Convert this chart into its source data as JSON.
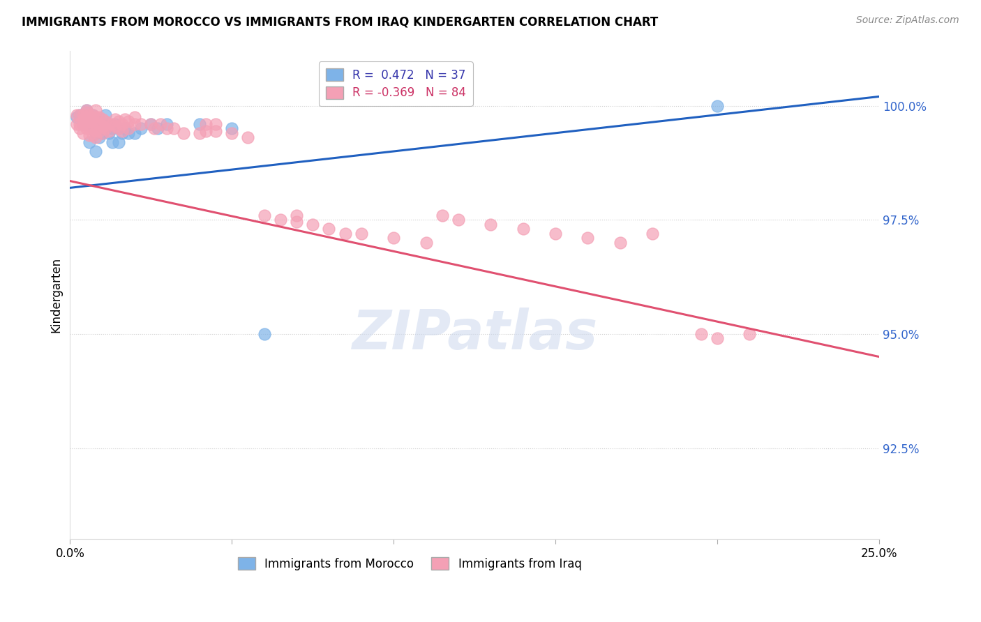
{
  "title": "IMMIGRANTS FROM MOROCCO VS IMMIGRANTS FROM IRAQ KINDERGARTEN CORRELATION CHART",
  "source": "Source: ZipAtlas.com",
  "ylabel": "Kindergarten",
  "ytick_values": [
    0.925,
    0.95,
    0.975,
    1.0
  ],
  "xlim": [
    0.0,
    0.25
  ],
  "ylim": [
    0.905,
    1.012
  ],
  "morocco_color": "#7eb3e8",
  "iraq_color": "#f4a0b5",
  "morocco_line_color": "#2060c0",
  "iraq_line_color": "#e05070",
  "watermark_text": "ZIPatlas",
  "morocco_points": [
    [
      0.002,
      0.9975
    ],
    [
      0.003,
      0.998
    ],
    [
      0.004,
      0.996
    ],
    [
      0.005,
      0.999
    ],
    [
      0.005,
      0.996
    ],
    [
      0.006,
      0.997
    ],
    [
      0.006,
      0.992
    ],
    [
      0.007,
      0.998
    ],
    [
      0.007,
      0.995
    ],
    [
      0.008,
      0.997
    ],
    [
      0.008,
      0.994
    ],
    [
      0.008,
      0.99
    ],
    [
      0.009,
      0.996
    ],
    [
      0.009,
      0.993
    ],
    [
      0.01,
      0.996
    ],
    [
      0.01,
      0.994
    ],
    [
      0.011,
      0.998
    ],
    [
      0.011,
      0.995
    ],
    [
      0.012,
      0.996
    ],
    [
      0.012,
      0.994
    ],
    [
      0.013,
      0.995
    ],
    [
      0.013,
      0.992
    ],
    [
      0.014,
      0.996
    ],
    [
      0.015,
      0.995
    ],
    [
      0.015,
      0.992
    ],
    [
      0.016,
      0.994
    ],
    [
      0.017,
      0.995
    ],
    [
      0.018,
      0.994
    ],
    [
      0.02,
      0.994
    ],
    [
      0.022,
      0.995
    ],
    [
      0.025,
      0.996
    ],
    [
      0.027,
      0.995
    ],
    [
      0.03,
      0.996
    ],
    [
      0.04,
      0.996
    ],
    [
      0.05,
      0.995
    ],
    [
      0.2,
      1.0
    ],
    [
      0.06,
      0.95
    ]
  ],
  "iraq_points": [
    [
      0.002,
      0.998
    ],
    [
      0.002,
      0.996
    ],
    [
      0.003,
      0.998
    ],
    [
      0.003,
      0.996
    ],
    [
      0.003,
      0.995
    ],
    [
      0.004,
      0.998
    ],
    [
      0.004,
      0.997
    ],
    [
      0.004,
      0.996
    ],
    [
      0.004,
      0.994
    ],
    [
      0.005,
      0.9985
    ],
    [
      0.005,
      0.9975
    ],
    [
      0.005,
      0.9965
    ],
    [
      0.005,
      0.995
    ],
    [
      0.006,
      0.998
    ],
    [
      0.006,
      0.9965
    ],
    [
      0.006,
      0.995
    ],
    [
      0.006,
      0.9935
    ],
    [
      0.007,
      0.998
    ],
    [
      0.007,
      0.9965
    ],
    [
      0.007,
      0.995
    ],
    [
      0.007,
      0.9935
    ],
    [
      0.008,
      0.9975
    ],
    [
      0.008,
      0.996
    ],
    [
      0.008,
      0.9945
    ],
    [
      0.008,
      0.993
    ],
    [
      0.009,
      0.9975
    ],
    [
      0.009,
      0.996
    ],
    [
      0.009,
      0.9945
    ],
    [
      0.01,
      0.997
    ],
    [
      0.01,
      0.9955
    ],
    [
      0.01,
      0.994
    ],
    [
      0.011,
      0.9965
    ],
    [
      0.011,
      0.995
    ],
    [
      0.012,
      0.996
    ],
    [
      0.012,
      0.9945
    ],
    [
      0.013,
      0.996
    ],
    [
      0.014,
      0.997
    ],
    [
      0.014,
      0.9955
    ],
    [
      0.015,
      0.9965
    ],
    [
      0.015,
      0.995
    ],
    [
      0.016,
      0.996
    ],
    [
      0.016,
      0.9945
    ],
    [
      0.017,
      0.997
    ],
    [
      0.018,
      0.9965
    ],
    [
      0.018,
      0.995
    ],
    [
      0.02,
      0.996
    ],
    [
      0.02,
      0.9975
    ],
    [
      0.022,
      0.996
    ],
    [
      0.025,
      0.996
    ],
    [
      0.026,
      0.995
    ],
    [
      0.028,
      0.996
    ],
    [
      0.03,
      0.995
    ],
    [
      0.032,
      0.995
    ],
    [
      0.035,
      0.994
    ],
    [
      0.04,
      0.994
    ],
    [
      0.042,
      0.996
    ],
    [
      0.042,
      0.9945
    ],
    [
      0.045,
      0.996
    ],
    [
      0.045,
      0.9945
    ],
    [
      0.05,
      0.994
    ],
    [
      0.055,
      0.993
    ],
    [
      0.06,
      0.976
    ],
    [
      0.065,
      0.975
    ],
    [
      0.07,
      0.976
    ],
    [
      0.07,
      0.9745
    ],
    [
      0.075,
      0.974
    ],
    [
      0.08,
      0.973
    ],
    [
      0.085,
      0.972
    ],
    [
      0.09,
      0.972
    ],
    [
      0.1,
      0.971
    ],
    [
      0.11,
      0.97
    ],
    [
      0.115,
      0.976
    ],
    [
      0.12,
      0.975
    ],
    [
      0.13,
      0.974
    ],
    [
      0.14,
      0.973
    ],
    [
      0.15,
      0.972
    ],
    [
      0.16,
      0.971
    ],
    [
      0.17,
      0.97
    ],
    [
      0.18,
      0.972
    ],
    [
      0.195,
      0.95
    ],
    [
      0.2,
      0.949
    ],
    [
      0.21,
      0.95
    ],
    [
      0.005,
      0.999
    ],
    [
      0.008,
      0.999
    ]
  ]
}
